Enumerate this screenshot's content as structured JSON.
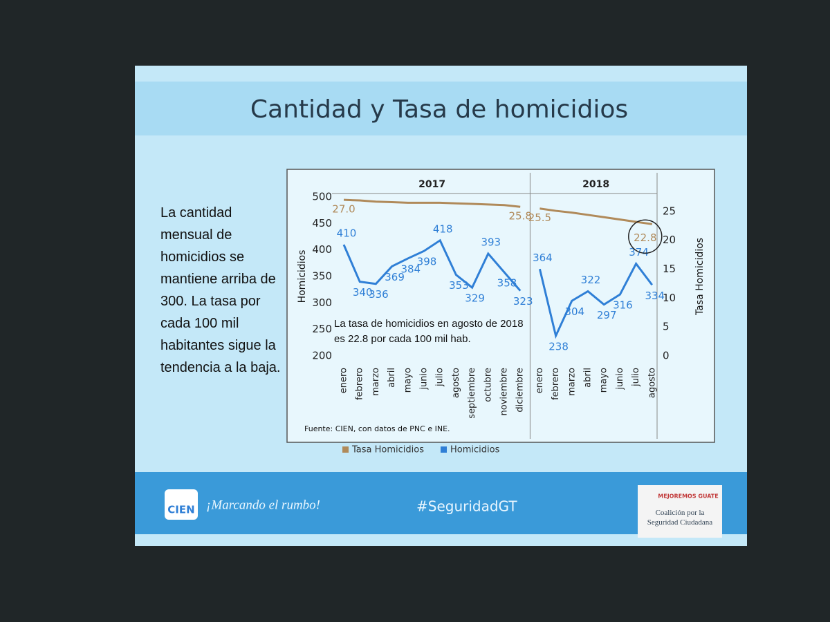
{
  "slide": {
    "title": "Cantidad y Tasa de homicidios",
    "body": "La cantidad mensual de homicidios se mantiene arriba de 300. La tasa por cada 100 mil habitantes sigue la tendencia a la baja.",
    "footer": {
      "logo": "CIEN",
      "slogan": "¡Marcando el rumbo!",
      "hashtag": "#SeguridadGT",
      "partner_logo": "MEJOREMOS GUATE",
      "partner": "Coalición por la Seguridad Ciudadana"
    }
  },
  "chart_data": {
    "type": "line",
    "groups": [
      {
        "label": "2017",
        "categories": [
          "enero",
          "febrero",
          "marzo",
          "abril",
          "mayo",
          "junio",
          "julio",
          "agosto",
          "septiembre",
          "octubre",
          "noviembre",
          "diciembre"
        ]
      },
      {
        "label": "2018",
        "categories": [
          "enero",
          "febrero",
          "marzo",
          "abril",
          "mayo",
          "junio",
          "julio",
          "agosto"
        ]
      }
    ],
    "series": [
      {
        "name": "Tasa Homicidios",
        "color": "#b08a5a",
        "axis": "y2",
        "values": [
          27.0,
          26.9,
          26.7,
          26.6,
          26.5,
          26.5,
          26.5,
          26.4,
          26.3,
          26.2,
          26.1,
          25.8,
          25.5,
          25.1,
          24.8,
          24.4,
          24.0,
          23.6,
          23.2,
          22.8
        ],
        "value_labels": [
          "27.0",
          null,
          null,
          null,
          null,
          null,
          null,
          null,
          null,
          null,
          null,
          "25.8",
          "25.5",
          null,
          null,
          null,
          null,
          null,
          null,
          "22.8"
        ]
      },
      {
        "name": "Homicidios",
        "color": "#2f7fd6",
        "values": [
          410,
          340,
          336,
          369,
          384,
          398,
          418,
          353,
          329,
          393,
          358,
          323,
          364,
          238,
          304,
          322,
          297,
          316,
          374,
          334
        ]
      }
    ],
    "ylabel": "Homicidios",
    "y2label": "Tasa Homicidios",
    "ylim": [
      200,
      500
    ],
    "yticks": [
      200,
      250,
      300,
      350,
      400,
      450,
      500
    ],
    "y2lim": [
      0,
      27.5
    ],
    "y2ticks": [
      0,
      5,
      10,
      15,
      20,
      25
    ],
    "annotation": "La tasa de homicidios en agosto de 2018 es 22.8 por cada 100 mil hab.",
    "source": "Fuente: CIEN, con datos de PNC e INE.",
    "legend": "bottom"
  }
}
